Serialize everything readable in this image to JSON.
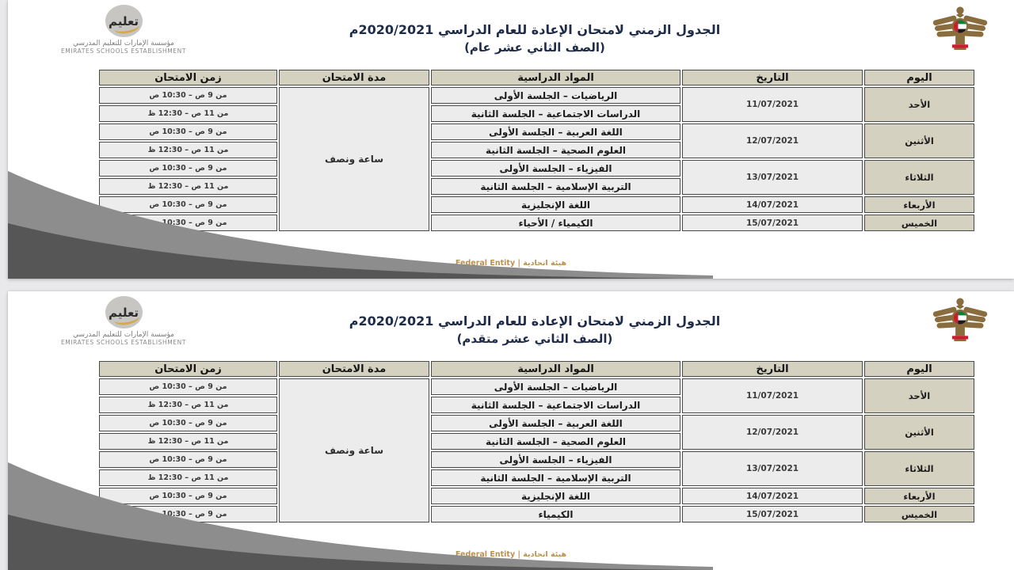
{
  "branding": {
    "logo_word": "تعليم",
    "org_ar": "مؤسسة الإمارات للتعليم المدرسي",
    "org_en": "EMIRATES SCHOOLS ESTABLISHMENT"
  },
  "footer": {
    "text": "Federal Entity | هيئة اتحادية"
  },
  "colors": {
    "header_bg": "#d5d1c0",
    "cell_bg": "#ececec",
    "accent_gold": "#bb9150",
    "swoosh_light": "#8d8d8d",
    "swoosh_dark": "#565656",
    "emblem_brown": "#8a6d3e",
    "flag_red": "#cf1b2b",
    "flag_green": "#00843d"
  },
  "tables": [
    {
      "title": "الجدول الزمني لامتحان الإعادة للعام الدراسي 2020/2021م",
      "subtitle": "(الصف الثاني عشر عام)",
      "headers": [
        "اليوم",
        "التاريخ",
        "المواد الدراسية",
        "مدة الامتحان",
        "زمن الامتحان"
      ],
      "duration": "ساعة ونصف",
      "days": [
        {
          "day": "الأحد",
          "date": "11/07/2021",
          "sessions": [
            {
              "subject": "الرياضيات – الجلسة الأولى",
              "time": "من 9 ص – 10:30 ص"
            },
            {
              "subject": "الدراسات الاجتماعية – الجلسة الثانية",
              "time": "من 11 ص – 12:30 ظ"
            }
          ]
        },
        {
          "day": "الأثنين",
          "date": "12/07/2021",
          "sessions": [
            {
              "subject": "اللغة العربية – الجلسة الأولى",
              "time": "من 9 ص – 10:30 ص"
            },
            {
              "subject": "العلوم الصحية – الجلسة الثانية",
              "time": "من 11 ص – 12:30 ظ"
            }
          ]
        },
        {
          "day": "الثلاثاء",
          "date": "13/07/2021",
          "sessions": [
            {
              "subject": "الفيزياء – الجلسة الأولى",
              "time": "من 9 ص – 10:30 ص"
            },
            {
              "subject": "التربية الإسلامية – الجلسة الثانية",
              "time": "من 11 ص – 12:30 ظ"
            }
          ]
        },
        {
          "day": "الأربعاء",
          "date": "14/07/2021",
          "sessions": [
            {
              "subject": "اللغة الإنجليزية",
              "time": "من 9 ص – 10:30 ص"
            }
          ]
        },
        {
          "day": "الخميس",
          "date": "15/07/2021",
          "sessions": [
            {
              "subject": "الكيمياء / الأحياء",
              "time": "من 9 ص – 10:30 ص"
            }
          ]
        }
      ]
    },
    {
      "title": "الجدول الزمني لامتحان الإعادة للعام الدراسي 2020/2021م",
      "subtitle": "(الصف الثاني عشر متقدم)",
      "headers": [
        "اليوم",
        "التاريخ",
        "المواد الدراسية",
        "مدة الامتحان",
        "زمن الامتحان"
      ],
      "duration": "ساعة ونصف",
      "days": [
        {
          "day": "الأحد",
          "date": "11/07/2021",
          "sessions": [
            {
              "subject": "الرياضيات – الجلسة الأولى",
              "time": "من 9 ص – 10:30 ص"
            },
            {
              "subject": "الدراسات الاجتماعية – الجلسة الثانية",
              "time": "من 11 ص – 12:30 ظ"
            }
          ]
        },
        {
          "day": "الأثنين",
          "date": "12/07/2021",
          "sessions": [
            {
              "subject": "اللغة العربية – الجلسة الأولى",
              "time": "من 9 ص – 10:30 ص"
            },
            {
              "subject": "العلوم الصحية – الجلسة الثانية",
              "time": "من 11 ص – 12:30 ظ"
            }
          ]
        },
        {
          "day": "الثلاثاء",
          "date": "13/07/2021",
          "sessions": [
            {
              "subject": "الفيزياء – الجلسة الأولى",
              "time": "من 9 ص – 10:30 ص"
            },
            {
              "subject": "التربية الإسلامية – الجلسة الثانية",
              "time": "من 11 ص – 12:30 ظ"
            }
          ]
        },
        {
          "day": "الأربعاء",
          "date": "14/07/2021",
          "sessions": [
            {
              "subject": "اللغة الإنجليزية",
              "time": "من 9 ص – 10:30 ص"
            }
          ]
        },
        {
          "day": "الخميس",
          "date": "15/07/2021",
          "sessions": [
            {
              "subject": "الكيمياء",
              "time": "من 9 ص – 10:30 ص"
            }
          ]
        }
      ]
    }
  ]
}
